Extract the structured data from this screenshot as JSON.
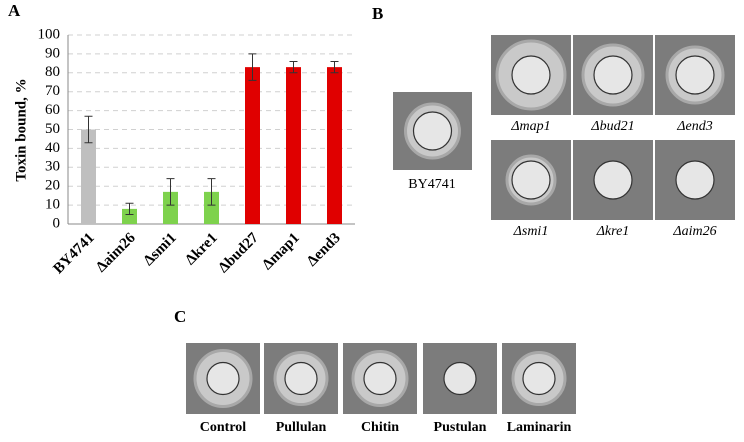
{
  "chart_data": {
    "type": "bar",
    "panel_label": "A",
    "y_label": "Toxin bound, %",
    "categories": [
      "BY4741",
      "Δaim26",
      "Δsmi1",
      "Δkre1",
      "Δbud27",
      "Δmap1",
      "Δend3"
    ],
    "values": [
      50,
      8,
      17,
      17,
      83,
      83,
      83
    ],
    "errors": [
      7,
      3,
      7,
      7,
      7,
      3,
      3
    ],
    "colors": [
      "#bfbfbf",
      "#7ed24d",
      "#7ed24d",
      "#7ed24d",
      "#e00000",
      "#e00000",
      "#e00000"
    ],
    "ylim": [
      0,
      100
    ],
    "yticks": [
      0,
      10,
      20,
      30,
      40,
      50,
      60,
      70,
      80,
      90,
      100
    ],
    "grid": true
  },
  "panel_b": {
    "label": "B",
    "reference": "BY4741",
    "captions": [
      "Δmap1",
      "Δbud21",
      "Δend3",
      "Δsmi1",
      "Δkre1",
      "Δaim26"
    ]
  },
  "panel_c": {
    "label": "C",
    "captions": [
      "Control",
      "Pullulan",
      "Chitin",
      "Pustulan",
      "Laminarin"
    ]
  }
}
